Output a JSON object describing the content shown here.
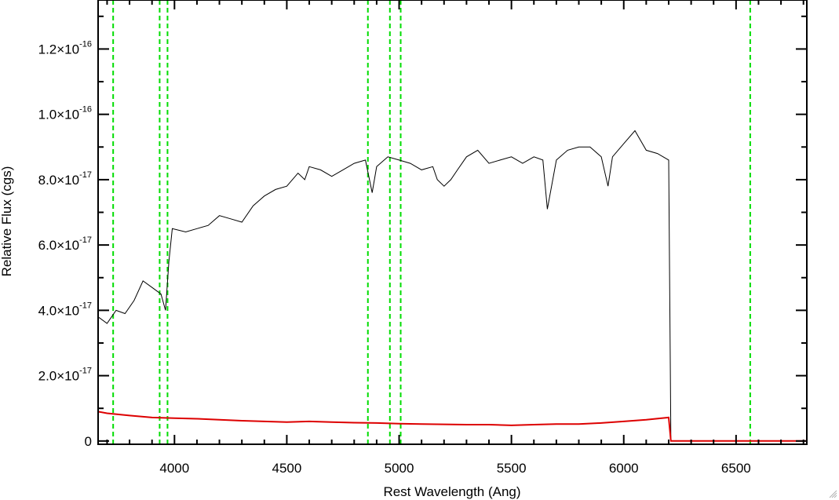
{
  "chart_data": {
    "type": "line",
    "title": "",
    "xlabel": "Rest Wavelength (Ang)",
    "ylabel": "Relative Flux (cgs)",
    "xlim": [
      3660,
      6815
    ],
    "ylim": [
      -1e-18,
      1.35e-16
    ],
    "x_ticks": [
      4000,
      4500,
      5000,
      5500,
      6000,
      6500
    ],
    "y_ticks": [
      {
        "value": 0,
        "mantissa": "0",
        "exponent": ""
      },
      {
        "value": 2e-17,
        "mantissa": "2.0×10",
        "exponent": "-17"
      },
      {
        "value": 4e-17,
        "mantissa": "4.0×10",
        "exponent": "-17"
      },
      {
        "value": 6e-17,
        "mantissa": "6.0×10",
        "exponent": "-17"
      },
      {
        "value": 8e-17,
        "mantissa": "8.0×10",
        "exponent": "-17"
      },
      {
        "value": 1e-16,
        "mantissa": "1.0×10",
        "exponent": "-16"
      },
      {
        "value": 1.2e-16,
        "mantissa": "1.2×10",
        "exponent": "-16"
      }
    ],
    "grid": false,
    "vlines": {
      "color": "#00dd00",
      "style": "dashed",
      "x": [
        3727,
        3934,
        3969,
        4861,
        4959,
        5007,
        6563
      ]
    },
    "series": [
      {
        "color": "#000000",
        "x": [
          3660,
          3700,
          3740,
          3780,
          3820,
          3860,
          3900,
          3940,
          3960,
          3975,
          3990,
          4050,
          4100,
          4150,
          4200,
          4250,
          4300,
          4350,
          4400,
          4450,
          4500,
          4550,
          4580,
          4600,
          4650,
          4700,
          4750,
          4800,
          4850,
          4880,
          4900,
          4950,
          5000,
          5050,
          5100,
          5150,
          5170,
          5200,
          5230,
          5260,
          5300,
          5350,
          5400,
          5450,
          5500,
          5550,
          5600,
          5640,
          5660,
          5700,
          5750,
          5800,
          5850,
          5900,
          5930,
          5950,
          6000,
          6050,
          6100,
          6150,
          6200,
          6210
        ],
        "y": [
          3.8e-17,
          3.6e-17,
          4e-17,
          3.9e-17,
          4.3e-17,
          4.9e-17,
          4.7e-17,
          4.5e-17,
          4e-17,
          5.5e-17,
          6.5e-17,
          6.4e-17,
          6.5e-17,
          6.6e-17,
          6.9e-17,
          6.8e-17,
          6.7e-17,
          7.2e-17,
          7.5e-17,
          7.7e-17,
          7.8e-17,
          8.2e-17,
          8e-17,
          8.4e-17,
          8.3e-17,
          8.1e-17,
          8.3e-17,
          8.5e-17,
          8.6e-17,
          7.6e-17,
          8.4e-17,
          8.7e-17,
          8.6e-17,
          8.5e-17,
          8.3e-17,
          8.4e-17,
          8e-17,
          7.8e-17,
          8e-17,
          8.3e-17,
          8.7e-17,
          8.9e-17,
          8.5e-17,
          8.6e-17,
          8.7e-17,
          8.5e-17,
          8.7e-17,
          8.6e-17,
          7.1e-17,
          8.6e-17,
          8.9e-17,
          9e-17,
          9e-17,
          8.7e-17,
          7.8e-17,
          8.7e-17,
          9.1e-17,
          9.5e-17,
          8.9e-17,
          8.8e-17,
          8.6e-17,
          0
        ]
      },
      {
        "color": "#dd0000",
        "x": [
          3660,
          3700,
          3800,
          3900,
          4000,
          4100,
          4200,
          4300,
          4400,
          4500,
          4600,
          4700,
          4800,
          4900,
          5000,
          5100,
          5200,
          5300,
          5400,
          5500,
          5600,
          5700,
          5800,
          5900,
          6000,
          6100,
          6200,
          6210,
          6815
        ],
        "y": [
          9e-18,
          8.5e-18,
          7.8e-18,
          7.2e-18,
          7e-18,
          6.8e-18,
          6.5e-18,
          6.2e-18,
          6e-18,
          5.8e-18,
          6e-18,
          5.8e-18,
          5.6e-18,
          5.5e-18,
          5.3e-18,
          5.2e-18,
          5.1e-18,
          5e-18,
          5e-18,
          4.8e-18,
          5e-18,
          5.2e-18,
          5.2e-18,
          5.5e-18,
          6e-18,
          6.5e-18,
          7.2e-18,
          0,
          0
        ]
      }
    ]
  }
}
